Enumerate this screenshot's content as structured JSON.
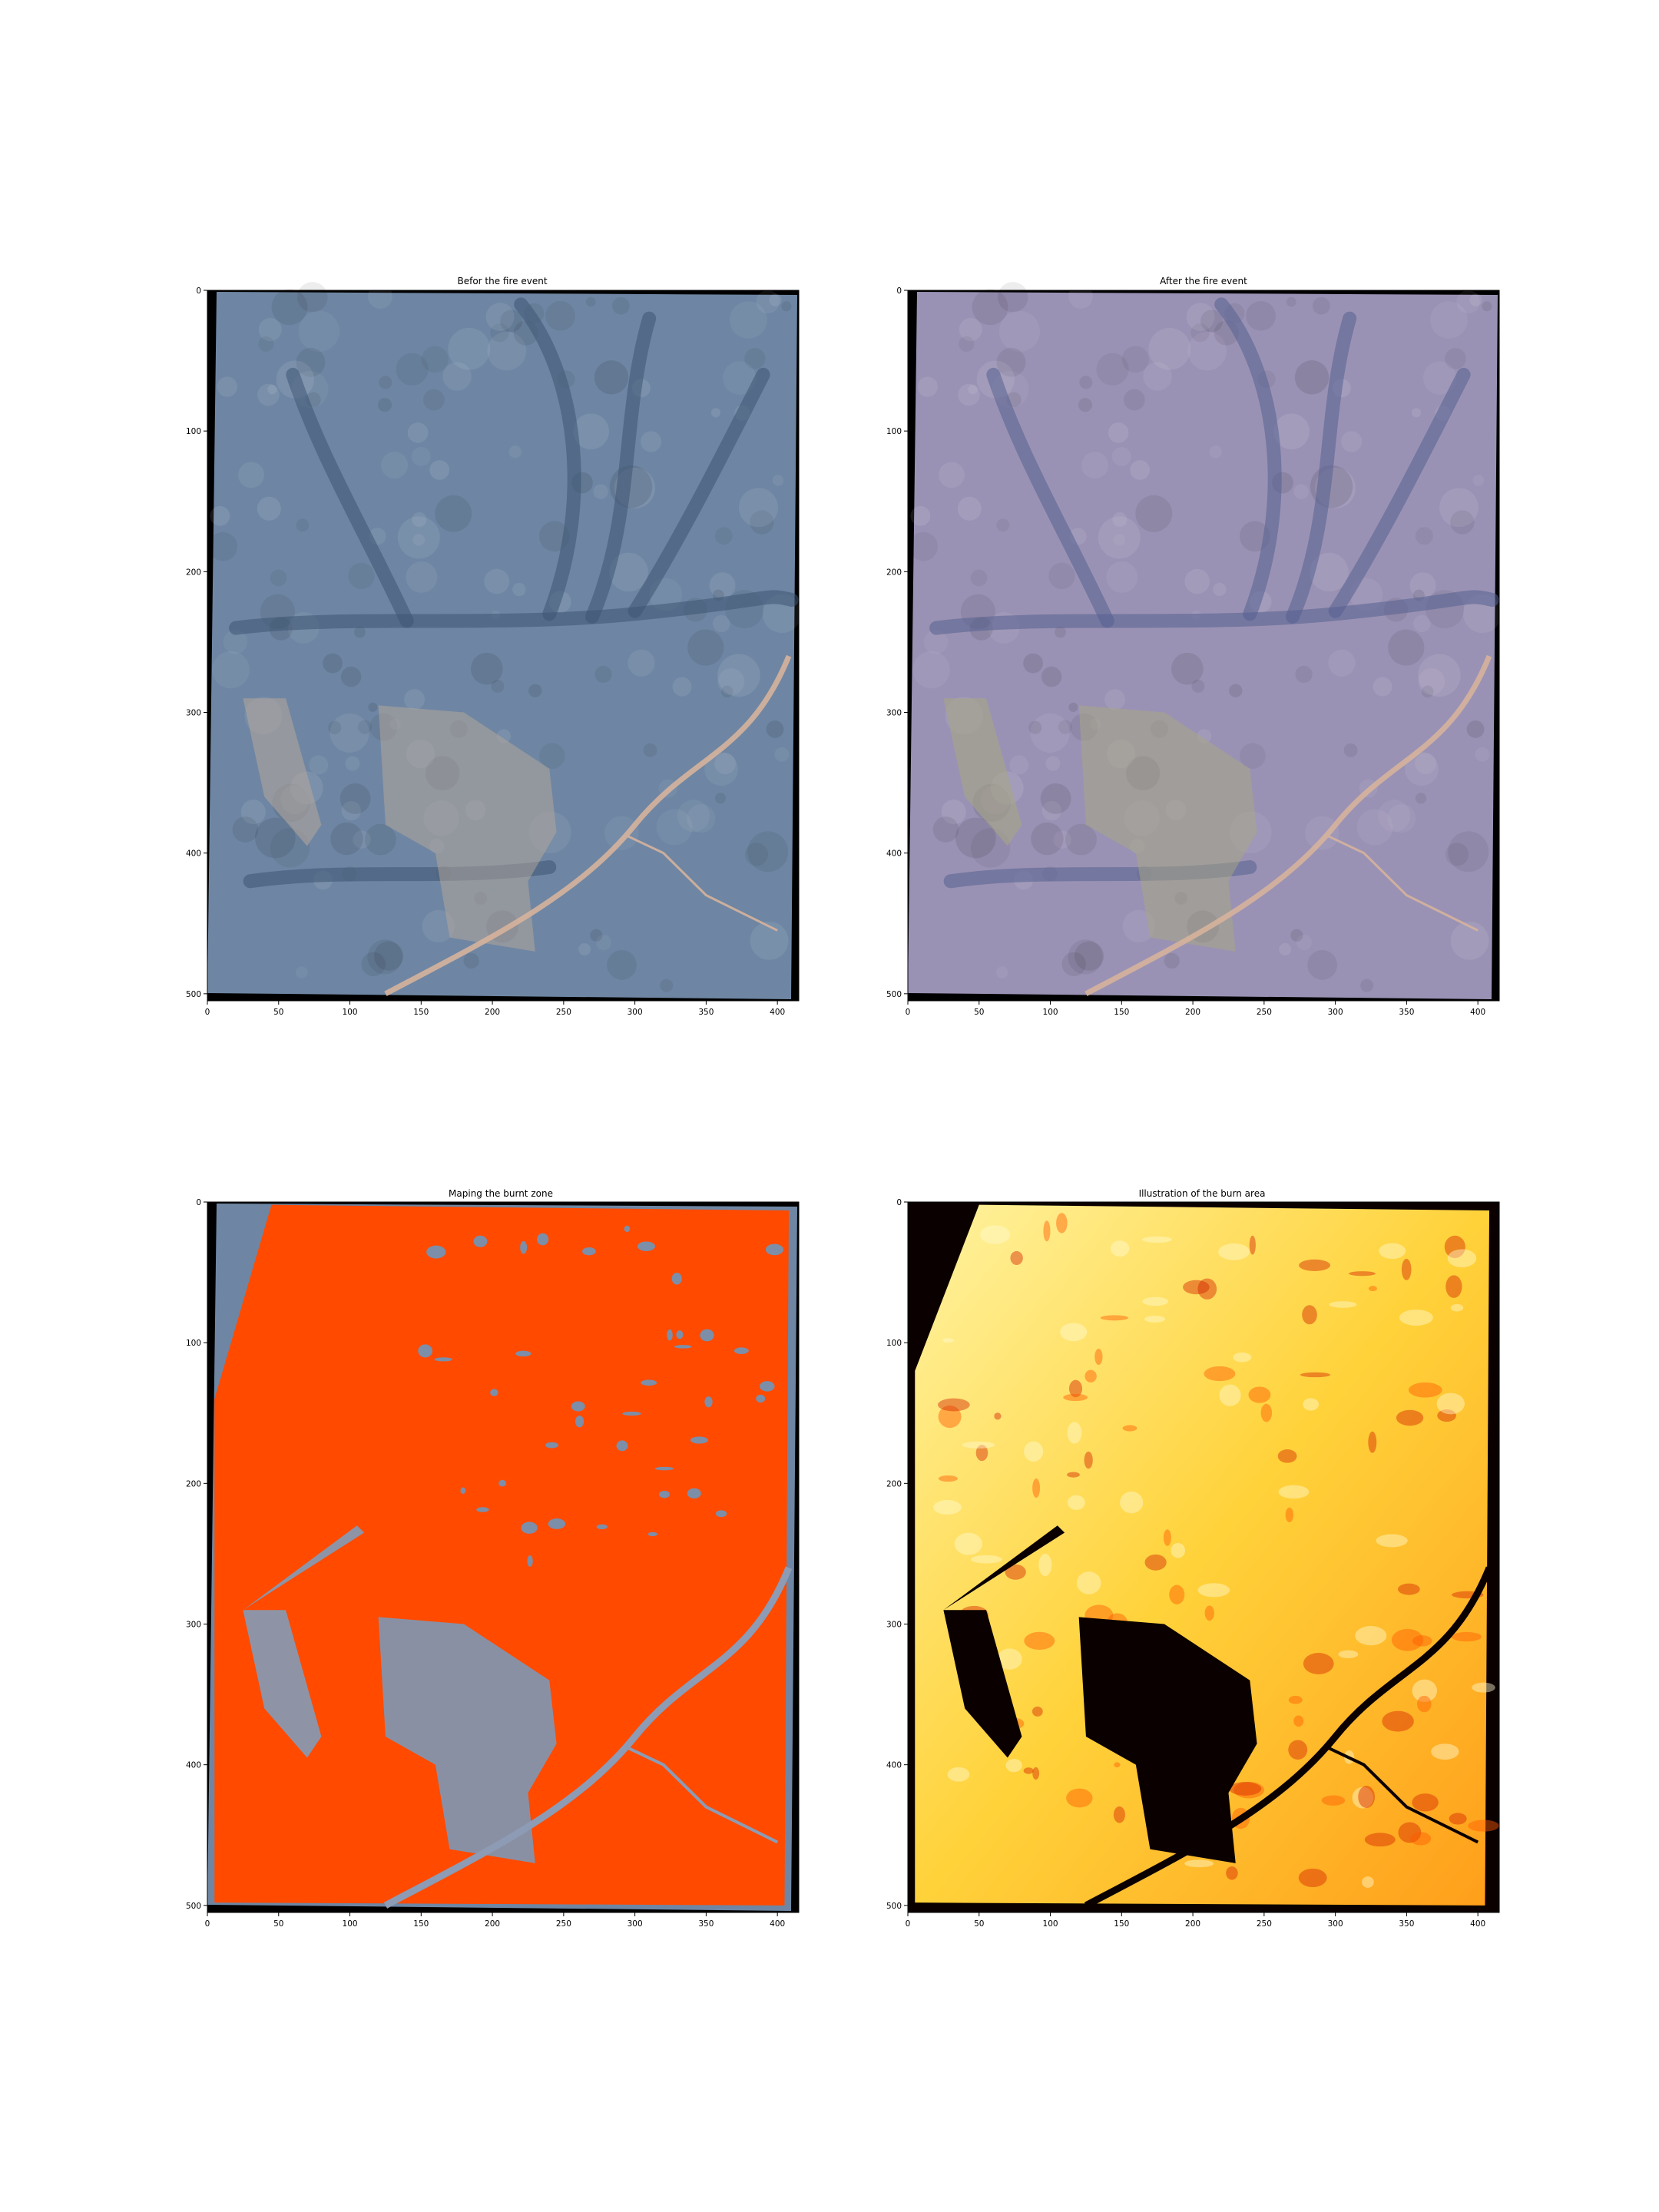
{
  "figure": {
    "panels": [
      {
        "id": "before",
        "title": "Befor the fire event",
        "style": "before"
      },
      {
        "id": "after",
        "title": "After the fire event",
        "style": "after"
      },
      {
        "id": "burnt-zone",
        "title": "Maping the burnt zone",
        "style": "mask"
      },
      {
        "id": "burn-area",
        "title": "Illustration of the burn area",
        "style": "heat"
      }
    ],
    "x_ticks": [
      "0",
      "50",
      "100",
      "150",
      "200",
      "250",
      "300",
      "350",
      "400"
    ],
    "y_ticks": [
      "0",
      "100",
      "200",
      "300",
      "400",
      "500"
    ],
    "colors": {
      "before_base": "#6e86a3",
      "after_base": "#9a92b4",
      "burn_mask": "#ff4a00",
      "heat_black": "#0b0000",
      "heat_yellow": "#ffef60",
      "road": "#d6b29c"
    }
  }
}
